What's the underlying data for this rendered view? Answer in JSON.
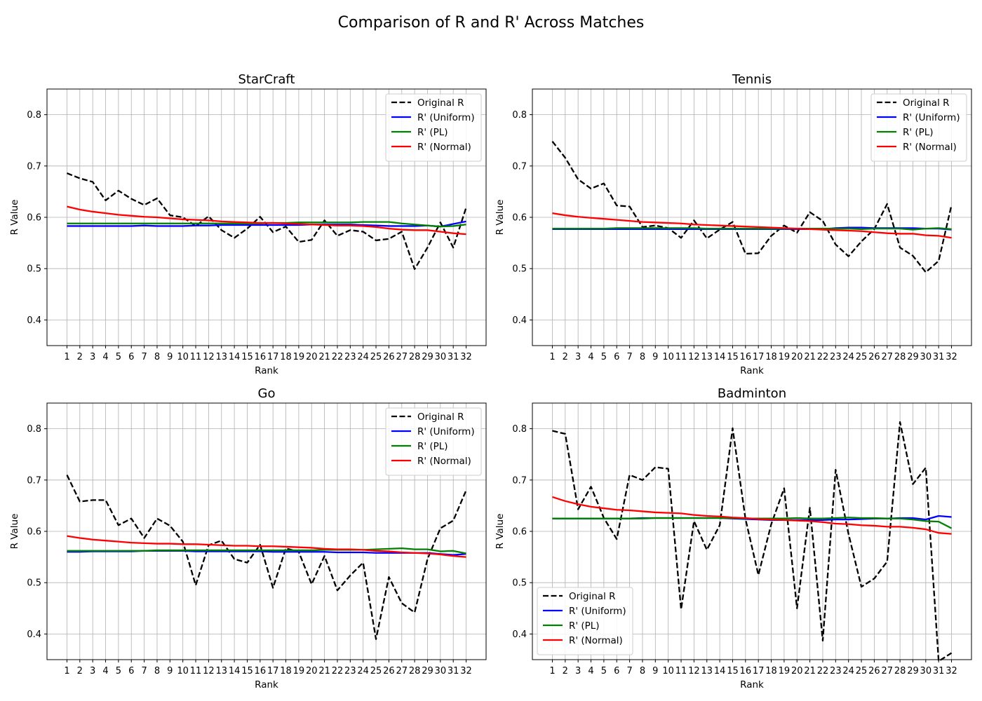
{
  "figure": {
    "title": "Comparison of R and R' Across Matches"
  },
  "chart_data": [
    {
      "type": "line",
      "title": "StarCraft",
      "xlabel": "Rank",
      "ylabel": "R Value",
      "ylim": [
        0.35,
        0.85
      ],
      "yticks": [
        0.4,
        0.5,
        0.6,
        0.7,
        0.8
      ],
      "grid": true,
      "legend_position": "top-right",
      "x": [
        1,
        2,
        3,
        4,
        5,
        6,
        7,
        8,
        9,
        10,
        11,
        12,
        13,
        14,
        15,
        16,
        17,
        18,
        19,
        20,
        21,
        22,
        23,
        24,
        25,
        26,
        27,
        28,
        29,
        30,
        31,
        32
      ],
      "series": [
        {
          "name": "Original R",
          "color": "#000000",
          "dash": true,
          "values": [
            0.686,
            0.676,
            0.669,
            0.633,
            0.652,
            0.636,
            0.624,
            0.637,
            0.604,
            0.6,
            0.583,
            0.602,
            0.575,
            0.56,
            0.578,
            0.601,
            0.571,
            0.582,
            0.552,
            0.556,
            0.594,
            0.564,
            0.575,
            0.572,
            0.555,
            0.558,
            0.572,
            0.499,
            0.541,
            0.59,
            0.541,
            0.619
          ]
        },
        {
          "name": "R' (Uniform)",
          "color": "#0000ff",
          "dash": false,
          "values": [
            0.583,
            0.583,
            0.583,
            0.583,
            0.583,
            0.583,
            0.584,
            0.583,
            0.583,
            0.583,
            0.584,
            0.584,
            0.585,
            0.585,
            0.585,
            0.585,
            0.585,
            0.585,
            0.585,
            0.586,
            0.586,
            0.586,
            0.586,
            0.585,
            0.584,
            0.583,
            0.583,
            0.583,
            0.584,
            0.582,
            0.587,
            0.592
          ]
        },
        {
          "name": "R' (PL)",
          "color": "#008000",
          "dash": false,
          "values": [
            0.588,
            0.588,
            0.588,
            0.588,
            0.588,
            0.588,
            0.588,
            0.588,
            0.588,
            0.588,
            0.588,
            0.588,
            0.588,
            0.588,
            0.588,
            0.588,
            0.589,
            0.589,
            0.59,
            0.59,
            0.59,
            0.59,
            0.59,
            0.591,
            0.591,
            0.591,
            0.588,
            0.586,
            0.584,
            0.582,
            0.583,
            0.586
          ]
        },
        {
          "name": "R' (Normal)",
          "color": "#ff0000",
          "dash": false,
          "values": [
            0.621,
            0.615,
            0.611,
            0.608,
            0.605,
            0.603,
            0.601,
            0.6,
            0.598,
            0.596,
            0.595,
            0.594,
            0.592,
            0.591,
            0.59,
            0.589,
            0.589,
            0.588,
            0.587,
            0.586,
            0.585,
            0.584,
            0.584,
            0.583,
            0.581,
            0.578,
            0.576,
            0.575,
            0.575,
            0.572,
            0.569,
            0.567
          ]
        }
      ]
    },
    {
      "type": "line",
      "title": "Tennis",
      "xlabel": "Rank",
      "ylabel": "R Value",
      "ylim": [
        0.35,
        0.85
      ],
      "yticks": [
        0.4,
        0.5,
        0.6,
        0.7,
        0.8
      ],
      "grid": true,
      "legend_position": "top-right",
      "x": [
        1,
        2,
        3,
        4,
        5,
        6,
        7,
        8,
        9,
        10,
        11,
        12,
        13,
        14,
        15,
        16,
        17,
        18,
        19,
        20,
        21,
        22,
        23,
        24,
        25,
        26,
        27,
        28,
        29,
        30,
        31,
        32
      ],
      "series": [
        {
          "name": "Original R",
          "color": "#000000",
          "dash": true,
          "values": [
            0.748,
            0.716,
            0.674,
            0.656,
            0.666,
            0.623,
            0.621,
            0.581,
            0.584,
            0.579,
            0.56,
            0.594,
            0.559,
            0.576,
            0.591,
            0.529,
            0.53,
            0.564,
            0.584,
            0.57,
            0.61,
            0.593,
            0.547,
            0.524,
            0.553,
            0.577,
            0.626,
            0.541,
            0.525,
            0.493,
            0.515,
            0.624
          ]
        },
        {
          "name": "R' (Uniform)",
          "color": "#0000ff",
          "dash": false,
          "values": [
            0.577,
            0.577,
            0.577,
            0.577,
            0.577,
            0.577,
            0.577,
            0.577,
            0.577,
            0.577,
            0.577,
            0.577,
            0.577,
            0.577,
            0.577,
            0.577,
            0.577,
            0.577,
            0.577,
            0.577,
            0.577,
            0.577,
            0.579,
            0.58,
            0.58,
            0.579,
            0.579,
            0.579,
            0.579,
            0.578,
            0.578,
            0.576
          ]
        },
        {
          "name": "R' (PL)",
          "color": "#008000",
          "dash": false,
          "values": [
            0.578,
            0.578,
            0.578,
            0.578,
            0.578,
            0.579,
            0.579,
            0.579,
            0.579,
            0.579,
            0.579,
            0.579,
            0.578,
            0.578,
            0.578,
            0.578,
            0.578,
            0.578,
            0.578,
            0.578,
            0.578,
            0.578,
            0.578,
            0.578,
            0.577,
            0.578,
            0.578,
            0.578,
            0.576,
            0.578,
            0.579,
            0.577
          ]
        },
        {
          "name": "R' (Normal)",
          "color": "#ff0000",
          "dash": false,
          "values": [
            0.608,
            0.604,
            0.601,
            0.599,
            0.597,
            0.595,
            0.593,
            0.591,
            0.59,
            0.589,
            0.588,
            0.586,
            0.585,
            0.584,
            0.583,
            0.582,
            0.581,
            0.58,
            0.579,
            0.578,
            0.577,
            0.576,
            0.575,
            0.574,
            0.573,
            0.571,
            0.569,
            0.568,
            0.568,
            0.565,
            0.564,
            0.56
          ]
        }
      ]
    },
    {
      "type": "line",
      "title": "Go",
      "xlabel": "Rank",
      "ylabel": "R Value",
      "ylim": [
        0.35,
        0.85
      ],
      "yticks": [
        0.4,
        0.5,
        0.6,
        0.7,
        0.8
      ],
      "grid": true,
      "legend_position": "top-right",
      "x": [
        1,
        2,
        3,
        4,
        5,
        6,
        7,
        8,
        9,
        10,
        11,
        12,
        13,
        14,
        15,
        16,
        17,
        18,
        19,
        20,
        21,
        22,
        23,
        24,
        25,
        26,
        27,
        28,
        29,
        30,
        31,
        32
      ],
      "series": [
        {
          "name": "Original R",
          "color": "#000000",
          "dash": true,
          "values": [
            0.71,
            0.658,
            0.661,
            0.661,
            0.612,
            0.625,
            0.587,
            0.625,
            0.611,
            0.58,
            0.495,
            0.573,
            0.582,
            0.546,
            0.539,
            0.574,
            0.49,
            0.567,
            0.56,
            0.497,
            0.552,
            0.485,
            0.514,
            0.539,
            0.39,
            0.511,
            0.46,
            0.442,
            0.546,
            0.606,
            0.621,
            0.68
          ]
        },
        {
          "name": "R' (Uniform)",
          "color": "#0000ff",
          "dash": false,
          "values": [
            0.56,
            0.56,
            0.561,
            0.561,
            0.561,
            0.561,
            0.562,
            0.562,
            0.562,
            0.562,
            0.561,
            0.561,
            0.561,
            0.561,
            0.561,
            0.561,
            0.56,
            0.56,
            0.56,
            0.56,
            0.56,
            0.559,
            0.559,
            0.559,
            0.558,
            0.558,
            0.558,
            0.558,
            0.558,
            0.556,
            0.554,
            0.556
          ]
        },
        {
          "name": "R' (PL)",
          "color": "#008000",
          "dash": false,
          "values": [
            0.562,
            0.562,
            0.562,
            0.562,
            0.562,
            0.562,
            0.562,
            0.563,
            0.563,
            0.563,
            0.563,
            0.563,
            0.563,
            0.563,
            0.563,
            0.563,
            0.563,
            0.563,
            0.563,
            0.563,
            0.564,
            0.564,
            0.564,
            0.564,
            0.565,
            0.566,
            0.567,
            0.565,
            0.565,
            0.561,
            0.562,
            0.557
          ]
        },
        {
          "name": "R' (Normal)",
          "color": "#ff0000",
          "dash": false,
          "values": [
            0.591,
            0.587,
            0.584,
            0.582,
            0.58,
            0.578,
            0.577,
            0.576,
            0.576,
            0.575,
            0.575,
            0.574,
            0.573,
            0.572,
            0.572,
            0.571,
            0.571,
            0.57,
            0.569,
            0.568,
            0.566,
            0.565,
            0.565,
            0.564,
            0.562,
            0.561,
            0.559,
            0.558,
            0.557,
            0.555,
            0.552,
            0.55
          ]
        }
      ]
    },
    {
      "type": "line",
      "title": "Badminton",
      "xlabel": "Rank",
      "ylabel": "R Value",
      "ylim": [
        0.35,
        0.85
      ],
      "yticks": [
        0.4,
        0.5,
        0.6,
        0.7,
        0.8
      ],
      "grid": true,
      "legend_position": "bottom-left",
      "x": [
        1,
        2,
        3,
        4,
        5,
        6,
        7,
        8,
        9,
        10,
        11,
        12,
        13,
        14,
        15,
        16,
        17,
        18,
        19,
        20,
        21,
        22,
        23,
        24,
        25,
        26,
        27,
        28,
        29,
        30,
        31,
        32
      ],
      "series": [
        {
          "name": "Original R",
          "color": "#000000",
          "dash": true,
          "values": [
            0.796,
            0.79,
            0.643,
            0.687,
            0.626,
            0.585,
            0.71,
            0.7,
            0.725,
            0.722,
            0.448,
            0.62,
            0.564,
            0.612,
            0.801,
            0.624,
            0.515,
            0.614,
            0.684,
            0.45,
            0.646,
            0.387,
            0.72,
            0.595,
            0.492,
            0.508,
            0.541,
            0.813,
            0.692,
            0.724,
            0.347,
            0.363
          ]
        },
        {
          "name": "R' (Uniform)",
          "color": "#0000ff",
          "dash": false,
          "values": [
            0.625,
            0.625,
            0.625,
            0.625,
            0.625,
            0.625,
            0.625,
            0.626,
            0.626,
            0.626,
            0.626,
            0.626,
            0.626,
            0.626,
            0.625,
            0.624,
            0.623,
            0.622,
            0.622,
            0.622,
            0.622,
            0.622,
            0.623,
            0.623,
            0.624,
            0.625,
            0.625,
            0.626,
            0.626,
            0.623,
            0.63,
            0.628
          ]
        },
        {
          "name": "R' (PL)",
          "color": "#008000",
          "dash": false,
          "values": [
            0.625,
            0.625,
            0.625,
            0.625,
            0.625,
            0.625,
            0.625,
            0.625,
            0.626,
            0.626,
            0.626,
            0.626,
            0.626,
            0.626,
            0.626,
            0.625,
            0.625,
            0.625,
            0.625,
            0.626,
            0.625,
            0.625,
            0.626,
            0.627,
            0.626,
            0.626,
            0.625,
            0.625,
            0.623,
            0.62,
            0.619,
            0.606
          ]
        },
        {
          "name": "R' (Normal)",
          "color": "#ff0000",
          "dash": false,
          "values": [
            0.667,
            0.659,
            0.653,
            0.648,
            0.645,
            0.642,
            0.641,
            0.639,
            0.637,
            0.636,
            0.635,
            0.632,
            0.63,
            0.629,
            0.627,
            0.626,
            0.624,
            0.623,
            0.622,
            0.621,
            0.62,
            0.618,
            0.615,
            0.614,
            0.612,
            0.611,
            0.609,
            0.609,
            0.607,
            0.604,
            0.597,
            0.595
          ]
        }
      ]
    }
  ]
}
